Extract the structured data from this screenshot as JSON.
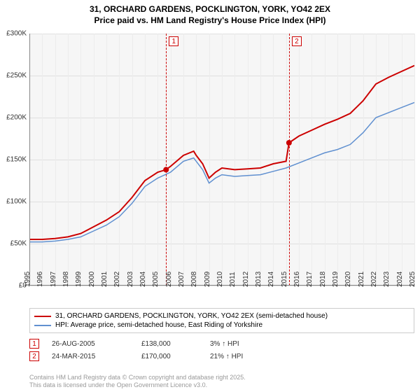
{
  "title_line1": "31, ORCHARD GARDENS, POCKLINGTON, YORK, YO42 2EX",
  "title_line2": "Price paid vs. HM Land Registry's House Price Index (HPI)",
  "chart": {
    "type": "line",
    "x_min": 1995,
    "x_max": 2025,
    "y_min": 0,
    "y_max": 300000,
    "y_tick_step": 50000,
    "y_prefix": "£",
    "x_ticks": [
      1995,
      1996,
      1997,
      1998,
      1999,
      2000,
      2001,
      2002,
      2003,
      2004,
      2005,
      2006,
      2007,
      2008,
      2009,
      2010,
      2011,
      2012,
      2013,
      2014,
      2015,
      2016,
      2017,
      2018,
      2019,
      2020,
      2021,
      2022,
      2023,
      2024,
      2025
    ],
    "background_color": "#f6f6f6",
    "grid_color": "#e0e0e0",
    "series": [
      {
        "name": "31, ORCHARD GARDENS, POCKLINGTON, YORK, YO42 2EX (semi-detached house)",
        "color": "#cc0000",
        "line_width": 2,
        "data": [
          [
            1995,
            55000
          ],
          [
            1996,
            55000
          ],
          [
            1997,
            56000
          ],
          [
            1998,
            58000
          ],
          [
            1999,
            62000
          ],
          [
            2000,
            70000
          ],
          [
            2001,
            78000
          ],
          [
            2002,
            88000
          ],
          [
            2003,
            105000
          ],
          [
            2004,
            125000
          ],
          [
            2005,
            135000
          ],
          [
            2005.65,
            138000
          ],
          [
            2006,
            142000
          ],
          [
            2007,
            155000
          ],
          [
            2007.8,
            160000
          ],
          [
            2008,
            155000
          ],
          [
            2008.5,
            145000
          ],
          [
            2009,
            128000
          ],
          [
            2009.5,
            135000
          ],
          [
            2010,
            140000
          ],
          [
            2011,
            138000
          ],
          [
            2012,
            139000
          ],
          [
            2013,
            140000
          ],
          [
            2014,
            145000
          ],
          [
            2015,
            148000
          ],
          [
            2015.23,
            170000
          ],
          [
            2016,
            178000
          ],
          [
            2017,
            185000
          ],
          [
            2018,
            192000
          ],
          [
            2019,
            198000
          ],
          [
            2020,
            205000
          ],
          [
            2021,
            220000
          ],
          [
            2022,
            240000
          ],
          [
            2023,
            248000
          ],
          [
            2024,
            255000
          ],
          [
            2025,
            262000
          ]
        ]
      },
      {
        "name": "HPI: Average price, semi-detached house, East Riding of Yorkshire",
        "color": "#6090d0",
        "line_width": 1.5,
        "data": [
          [
            1995,
            52000
          ],
          [
            1996,
            52000
          ],
          [
            1997,
            53000
          ],
          [
            1998,
            55000
          ],
          [
            1999,
            58000
          ],
          [
            2000,
            65000
          ],
          [
            2001,
            72000
          ],
          [
            2002,
            82000
          ],
          [
            2003,
            98000
          ],
          [
            2004,
            118000
          ],
          [
            2005,
            128000
          ],
          [
            2006,
            135000
          ],
          [
            2007,
            148000
          ],
          [
            2007.8,
            152000
          ],
          [
            2008,
            148000
          ],
          [
            2008.5,
            138000
          ],
          [
            2009,
            122000
          ],
          [
            2009.5,
            128000
          ],
          [
            2010,
            132000
          ],
          [
            2011,
            130000
          ],
          [
            2012,
            131000
          ],
          [
            2013,
            132000
          ],
          [
            2014,
            136000
          ],
          [
            2015,
            140000
          ],
          [
            2016,
            146000
          ],
          [
            2017,
            152000
          ],
          [
            2018,
            158000
          ],
          [
            2019,
            162000
          ],
          [
            2020,
            168000
          ],
          [
            2021,
            182000
          ],
          [
            2022,
            200000
          ],
          [
            2023,
            206000
          ],
          [
            2024,
            212000
          ],
          [
            2025,
            218000
          ]
        ]
      }
    ],
    "markers": [
      {
        "id": "1",
        "x": 2005.65,
        "y": 138000,
        "color": "#cc0000"
      },
      {
        "id": "2",
        "x": 2015.23,
        "y": 170000,
        "color": "#cc0000"
      }
    ]
  },
  "legend": [
    {
      "color": "#cc0000",
      "label": "31, ORCHARD GARDENS, POCKLINGTON, YORK, YO42 2EX (semi-detached house)"
    },
    {
      "color": "#6090d0",
      "label": "HPI: Average price, semi-detached house, East Riding of Yorkshire"
    }
  ],
  "sales": [
    {
      "id": "1",
      "color": "#cc0000",
      "date": "26-AUG-2005",
      "price": "£138,000",
      "pct": "3% ↑ HPI"
    },
    {
      "id": "2",
      "color": "#cc0000",
      "date": "24-MAR-2015",
      "price": "£170,000",
      "pct": "21% ↑ HPI"
    }
  ],
  "attribution_line1": "Contains HM Land Registry data © Crown copyright and database right 2025.",
  "attribution_line2": "This data is licensed under the Open Government Licence v3.0."
}
